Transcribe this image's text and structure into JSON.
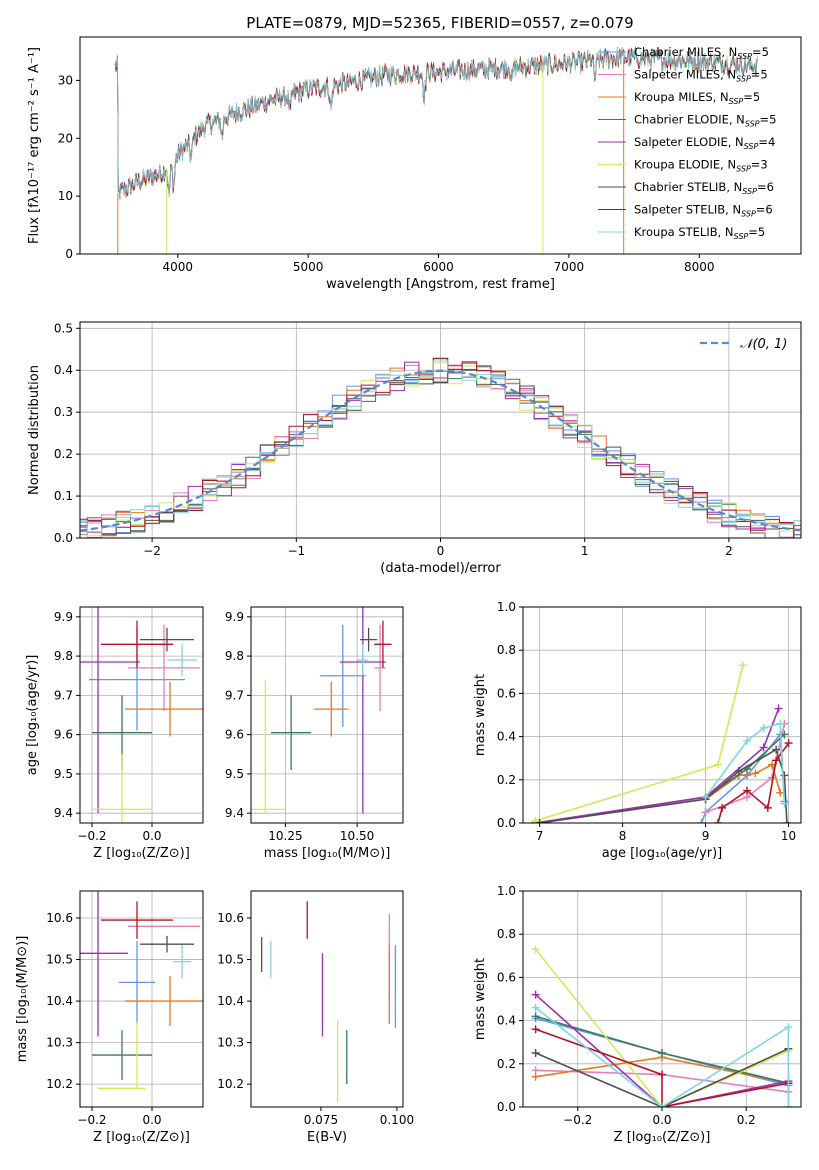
{
  "figure": {
    "title": "PLATE=0879, MJD=52365, FIBERID=0557, z=0.079"
  },
  "colors": {
    "chabrier_miles": "#6495ed",
    "salpeter_miles": "#e47fbf",
    "kroupa_miles": "#e87722",
    "chabrier_elodie": "#3d7a5c",
    "salpeter_elodie": "#9b30b0",
    "kroupa_elodie": "#d4e85a",
    "chabrier_stelib": "#505050",
    "salpeter_stelib": "#b21522",
    "kroupa_stelib": "#7fd6e0",
    "gaussian": "#5588cc",
    "grid": "#b0b0b0"
  },
  "chart_data": [
    {
      "id": "spectrum",
      "type": "line",
      "xlabel": "wavelength [Angstrom, rest frame]",
      "ylabel": "Flux [fλ10⁻¹⁷ erg cm⁻² s⁻¹ A⁻¹]",
      "xlim": [
        3250,
        8780
      ],
      "ylim": [
        0,
        37.5
      ],
      "xticks": [
        4000,
        5000,
        6000,
        7000,
        8000
      ],
      "yticks": [
        0,
        10,
        20,
        30
      ],
      "continuum": [
        [
          3540,
          10.5
        ],
        [
          3700,
          12.5
        ],
        [
          3880,
          14
        ],
        [
          4000,
          17
        ],
        [
          4200,
          22
        ],
        [
          4400,
          24
        ],
        [
          4700,
          26.5
        ],
        [
          5000,
          28.5
        ],
        [
          5300,
          29.5
        ],
        [
          5600,
          31
        ],
        [
          6000,
          31.5
        ],
        [
          6400,
          32
        ],
        [
          6700,
          32.5
        ],
        [
          7000,
          33
        ],
        [
          7400,
          34
        ],
        [
          7800,
          33.5
        ],
        [
          8200,
          33
        ],
        [
          8450,
          32.5
        ]
      ],
      "legend_position": "top-right",
      "series": [
        {
          "name": "Chabrier MILES, N_SSP=5",
          "color_key": "chabrier_miles"
        },
        {
          "name": "Salpeter MILES, N_SSP=5",
          "color_key": "salpeter_miles"
        },
        {
          "name": "Kroupa MILES, N_SSP=5",
          "color_key": "kroupa_miles"
        },
        {
          "name": "Chabrier ELODIE, N_SSP=5",
          "color_key": "chabrier_elodie"
        },
        {
          "name": "Salpeter ELODIE, N_SSP=4",
          "color_key": "salpeter_elodie"
        },
        {
          "name": "Kroupa ELODIE, N_SSP=3",
          "color_key": "kroupa_elodie"
        },
        {
          "name": "Chabrier STELIB, N_SSP=6",
          "color_key": "chabrier_stelib"
        },
        {
          "name": "Salpeter STELIB, N_SSP=6",
          "color_key": "salpeter_stelib"
        },
        {
          "name": "Kroupa STELIB, N_SSP=5",
          "color_key": "kroupa_stelib"
        }
      ]
    },
    {
      "id": "residuals",
      "type": "line",
      "xlabel": "(data-model)/error",
      "ylabel": "Normed distribution",
      "xlim": [
        -2.5,
        2.5
      ],
      "ylim": [
        0,
        0.515
      ],
      "xticks": [
        -2,
        -1,
        0,
        1,
        2
      ],
      "yticks": [
        0.0,
        0.1,
        0.2,
        0.3,
        0.4,
        0.5
      ],
      "grid": true,
      "legend": "𝒩(0, 1)",
      "legend_position": "top-right"
    },
    {
      "id": "age_vs_Z",
      "type": "scatter",
      "xlabel": "Z [log₁₀(Z/Z⊙)]",
      "ylabel": "age  [log₁₀(age/yr)]",
      "xlim": [
        -0.24,
        0.17
      ],
      "ylim": [
        9.375,
        9.925
      ],
      "xticks": [
        -0.2,
        0.0
      ],
      "yticks": [
        9.4,
        9.5,
        9.6,
        9.7,
        9.8,
        9.9
      ],
      "grid": true,
      "points": [
        {
          "x": -0.05,
          "y": 9.74,
          "xerr": 0.16,
          "yerr": 0.13,
          "color_key": "chabrier_miles"
        },
        {
          "x": 0.04,
          "y": 9.77,
          "xerr": 0.12,
          "yerr": 0.11,
          "color_key": "salpeter_miles"
        },
        {
          "x": 0.06,
          "y": 9.665,
          "xerr": 0.15,
          "yerr": 0.07,
          "color_key": "kroupa_miles"
        },
        {
          "x": -0.1,
          "y": 9.605,
          "xerr": 0.1,
          "yerr": 0.095,
          "color_key": "chabrier_elodie"
        },
        {
          "x": -0.18,
          "y": 9.785,
          "xerr": 0.14,
          "yerr": 0.385,
          "color_key": "salpeter_elodie"
        },
        {
          "x": -0.1,
          "y": 9.41,
          "xerr": 0.1,
          "yerr": 0.0,
          "color_key": "kroupa_elodie"
        },
        {
          "x": -0.1,
          "y": 9.41,
          "xerr": 0.0,
          "yerr": 0.14,
          "color_key": "kroupa_elodie"
        },
        {
          "x": 0.05,
          "y": 9.842,
          "xerr": 0.09,
          "yerr": 0.03,
          "color_key": "chabrier_stelib"
        },
        {
          "x": -0.05,
          "y": 9.83,
          "xerr": 0.12,
          "yerr": 0.06,
          "color_key": "salpeter_stelib"
        },
        {
          "x": 0.1,
          "y": 9.79,
          "xerr": 0.05,
          "yerr": 0.04,
          "color_key": "kroupa_stelib"
        }
      ]
    },
    {
      "id": "age_vs_mass",
      "type": "scatter",
      "xlabel": "mass [log₁₀(M/M⊙)]",
      "ylabel": "",
      "xlim": [
        10.13,
        10.66
      ],
      "ylim": [
        9.375,
        9.925
      ],
      "xticks": [
        10.25,
        10.5
      ],
      "yticks": [
        9.4,
        9.5,
        9.6,
        9.7,
        9.8,
        9.9
      ],
      "grid": true,
      "points": [
        {
          "x": 10.45,
          "y": 9.75,
          "xerr": 0.08,
          "yerr": 0.13,
          "color_key": "chabrier_miles"
        },
        {
          "x": 10.58,
          "y": 9.77,
          "xerr": 0.02,
          "yerr": 0.11,
          "color_key": "salpeter_miles"
        },
        {
          "x": 10.41,
          "y": 9.665,
          "xerr": 0.06,
          "yerr": 0.07,
          "color_key": "kroupa_miles"
        },
        {
          "x": 10.27,
          "y": 9.605,
          "xerr": 0.07,
          "yerr": 0.095,
          "color_key": "chabrier_elodie"
        },
        {
          "x": 10.52,
          "y": 9.785,
          "xerr": 0.08,
          "yerr": 0.385,
          "color_key": "salpeter_elodie"
        },
        {
          "x": 10.19,
          "y": 9.41,
          "xerr": 0.06,
          "yerr": 0.0,
          "color_key": "kroupa_elodie"
        },
        {
          "x": 10.18,
          "y": 9.57,
          "xerr": 0.0,
          "yerr": 0.17,
          "color_key": "kroupa_elodie"
        },
        {
          "x": 10.54,
          "y": 9.842,
          "xerr": 0.03,
          "yerr": 0.03,
          "color_key": "chabrier_stelib"
        },
        {
          "x": 10.59,
          "y": 9.83,
          "xerr": 0.03,
          "yerr": 0.06,
          "color_key": "salpeter_stelib"
        },
        {
          "x": 10.52,
          "y": 9.79,
          "xerr": 0.02,
          "yerr": 0.04,
          "color_key": "kroupa_stelib"
        }
      ]
    },
    {
      "id": "weight_vs_age",
      "type": "line",
      "xlabel": "age  [log₁₀(age/yr)]",
      "ylabel": "mass weight",
      "xlim": [
        6.8,
        10.15
      ],
      "ylim": [
        0,
        1.0
      ],
      "xticks": [
        7,
        8,
        9,
        10
      ],
      "yticks": [
        0.0,
        0.2,
        0.4,
        0.6,
        0.8,
        1.0
      ],
      "grid": true,
      "series": [
        {
          "color_key": "chabrier_miles",
          "x": [
            8.95,
            9.0,
            9.5,
            9.9,
            9.95
          ],
          "y": [
            0.0,
            0.05,
            0.22,
            0.41,
            0.1
          ]
        },
        {
          "color_key": "salpeter_miles",
          "x": [
            9.0,
            9.5,
            9.8,
            9.95
          ],
          "y": [
            0.05,
            0.12,
            0.21,
            0.46
          ]
        },
        {
          "color_key": "kroupa_miles",
          "x": [
            9.0,
            9.4,
            9.6,
            9.8,
            9.9
          ],
          "y": [
            0.11,
            0.22,
            0.23,
            0.27,
            0.14
          ]
        },
        {
          "color_key": "chabrier_elodie",
          "x": [
            6.95,
            9.0,
            9.5,
            9.95
          ],
          "y": [
            0.0,
            0.12,
            0.25,
            0.41
          ]
        },
        {
          "color_key": "salpeter_elodie",
          "x": [
            6.95,
            9.0,
            9.7,
            9.88
          ],
          "y": [
            0.0,
            0.12,
            0.35,
            0.53
          ]
        },
        {
          "color_key": "kroupa_elodie",
          "x": [
            6.95,
            9.15,
            9.45
          ],
          "y": [
            0.01,
            0.27,
            0.73
          ]
        },
        {
          "color_key": "chabrier_stelib",
          "x": [
            7.0,
            9.0,
            9.4,
            9.85,
            9.95,
            9.98
          ],
          "y": [
            0.0,
            0.11,
            0.24,
            0.34,
            0.22,
            0.0
          ]
        },
        {
          "color_key": "salpeter_stelib",
          "x": [
            9.15,
            9.2,
            9.5,
            9.75,
            9.85,
            10.0
          ],
          "y": [
            0.0,
            0.07,
            0.15,
            0.07,
            0.29,
            0.37
          ]
        },
        {
          "color_key": "kroupa_stelib",
          "x": [
            9.0,
            9.5,
            9.7,
            9.9,
            9.95
          ],
          "y": [
            0.12,
            0.38,
            0.44,
            0.46,
            0.09
          ]
        }
      ]
    },
    {
      "id": "mass_vs_Z",
      "type": "scatter",
      "xlabel": "Z [log₁₀(Z/Z⊙)]",
      "ylabel": "mass [log₁₀(M/M⊙)]",
      "xlim": [
        -0.24,
        0.17
      ],
      "ylim": [
        10.145,
        10.665
      ],
      "xticks": [
        -0.2,
        0.0
      ],
      "yticks": [
        10.2,
        10.3,
        10.4,
        10.5,
        10.6
      ],
      "grid": true,
      "points": [
        {
          "x": -0.05,
          "y": 10.445,
          "xerr": 0.06,
          "yerr": 0.1,
          "color_key": "chabrier_miles"
        },
        {
          "x": 0.04,
          "y": 10.58,
          "xerr": 0.12,
          "yerr": 0.0,
          "color_key": "salpeter_miles"
        },
        {
          "x": 0.06,
          "y": 10.4,
          "xerr": 0.15,
          "yerr": 0.06,
          "color_key": "kroupa_miles"
        },
        {
          "x": -0.1,
          "y": 10.27,
          "xerr": 0.1,
          "yerr": 0.06,
          "color_key": "chabrier_elodie"
        },
        {
          "x": -0.18,
          "y": 10.515,
          "xerr": 0.1,
          "yerr": 0.2,
          "color_key": "salpeter_elodie"
        },
        {
          "x": -0.1,
          "y": 10.19,
          "xerr": 0.08,
          "yerr": 0.0,
          "color_key": "kroupa_elodie"
        },
        {
          "x": -0.05,
          "y": 10.27,
          "xerr": 0.0,
          "yerr": 0.08,
          "color_key": "kroupa_elodie"
        },
        {
          "x": 0.05,
          "y": 10.537,
          "xerr": 0.09,
          "yerr": 0.02,
          "color_key": "chabrier_stelib"
        },
        {
          "x": -0.05,
          "y": 10.595,
          "xerr": 0.12,
          "yerr": 0.045,
          "color_key": "salpeter_stelib"
        },
        {
          "x": 0.1,
          "y": 10.495,
          "xerr": 0.03,
          "yerr": 0.04,
          "color_key": "kroupa_stelib"
        }
      ]
    },
    {
      "id": "mass_vs_ebv",
      "type": "scatter",
      "xlabel": "E(B-V)",
      "ylabel": "",
      "xlim": [
        0.052,
        0.102
      ],
      "ylim": [
        10.145,
        10.665
      ],
      "xticks": [
        0.075,
        0.1
      ],
      "yticks": [
        10.2,
        10.3,
        10.4,
        10.5,
        10.6
      ],
      "grid": false,
      "points": [
        {
          "x": 0.0995,
          "y": 10.435,
          "xerr": 0.0,
          "yerr": 0.1,
          "color_key": "chabrier_miles"
        },
        {
          "x": 0.0975,
          "y": 10.5,
          "xerr": 0.0,
          "yerr": 0.11,
          "color_key": "salpeter_miles"
        },
        {
          "x": 0.0975,
          "y": 10.44,
          "xerr": 0.0,
          "yerr": 0.095,
          "color_key": "kroupa_miles"
        },
        {
          "x": 0.0835,
          "y": 10.265,
          "xerr": 0.0,
          "yerr": 0.065,
          "color_key": "chabrier_elodie"
        },
        {
          "x": 0.0755,
          "y": 10.415,
          "xerr": 0.0,
          "yerr": 0.1,
          "color_key": "salpeter_elodie"
        },
        {
          "x": 0.0805,
          "y": 10.255,
          "xerr": 0.0,
          "yerr": 0.1,
          "color_key": "kroupa_elodie"
        },
        {
          "x": 0.0555,
          "y": 10.512,
          "xerr": 0.0,
          "yerr": 0.042,
          "color_key": "chabrier_stelib"
        },
        {
          "x": 0.0705,
          "y": 10.595,
          "xerr": 0.0,
          "yerr": 0.045,
          "color_key": "salpeter_stelib"
        },
        {
          "x": 0.0585,
          "y": 10.5,
          "xerr": 0.0,
          "yerr": 0.045,
          "color_key": "kroupa_stelib"
        }
      ]
    },
    {
      "id": "weight_vs_Z",
      "type": "line",
      "xlabel": "Z [log₁₀(Z/Z⊙)]",
      "ylabel": "mass weight",
      "xlim": [
        -0.33,
        0.33
      ],
      "ylim": [
        0,
        1.0
      ],
      "xticks": [
        -0.2,
        0.0,
        0.2
      ],
      "yticks": [
        0.0,
        0.2,
        0.4,
        0.6,
        0.8,
        1.0
      ],
      "grid": true,
      "series": [
        {
          "color_key": "chabrier_miles",
          "x": [
            -0.3,
            0.0,
            0.3,
            0.3
          ],
          "y": [
            0.41,
            0.25,
            0.1,
            0.0
          ]
        },
        {
          "color_key": "salpeter_miles",
          "x": [
            -0.3,
            0.0,
            0.3
          ],
          "y": [
            0.17,
            0.15,
            0.07
          ]
        },
        {
          "color_key": "kroupa_miles",
          "x": [
            -0.3,
            0.0,
            0.3
          ],
          "y": [
            0.14,
            0.23,
            0.11
          ]
        },
        {
          "color_key": "chabrier_elodie",
          "x": [
            -0.3,
            0.0,
            0.3
          ],
          "y": [
            0.42,
            0.25,
            0.11
          ]
        },
        {
          "color_key": "salpeter_elodie",
          "x": [
            -0.3,
            0.0,
            0.3
          ],
          "y": [
            0.52,
            0.0,
            0.12
          ]
        },
        {
          "color_key": "kroupa_elodie",
          "x": [
            -0.3,
            0.0,
            0.3
          ],
          "y": [
            0.73,
            0.0,
            0.26
          ]
        },
        {
          "color_key": "chabrier_stelib",
          "x": [
            -0.3,
            0.0,
            0.3
          ],
          "y": [
            0.25,
            0.0,
            0.27
          ]
        },
        {
          "color_key": "salpeter_stelib",
          "x": [
            -0.3,
            0.0,
            0.0,
            0.3
          ],
          "y": [
            0.36,
            0.15,
            0.0,
            0.11
          ]
        },
        {
          "color_key": "kroupa_stelib",
          "x": [
            -0.3,
            0.0,
            0.3,
            0.3
          ],
          "y": [
            0.46,
            0.0,
            0.37,
            0.0
          ]
        }
      ]
    }
  ]
}
